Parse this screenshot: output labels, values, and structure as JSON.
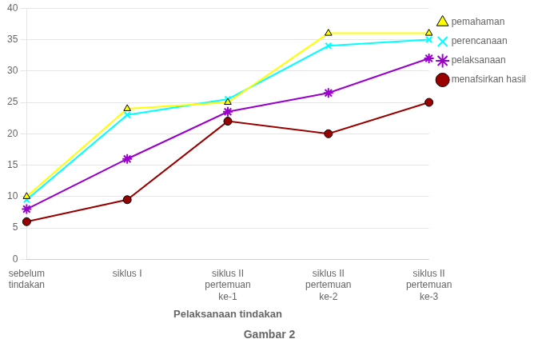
{
  "chart_data": {
    "type": "line",
    "categories": [
      "sebelum\ntindakan",
      "siklus I",
      "siklus II\npertemuan\nke-1",
      "siklus II\npertemuan\nke-2",
      "siklus II\npertemuan\nke-3"
    ],
    "series": [
      {
        "name": "pemahaman",
        "values": [
          10,
          24,
          25,
          36,
          36
        ],
        "color": "#FFFF00",
        "marker": "triangle"
      },
      {
        "name": "perencanaan",
        "values": [
          9.5,
          23,
          25.5,
          34,
          35
        ],
        "color": "#00FFFF",
        "marker": "x"
      },
      {
        "name": "pelaksanaan",
        "values": [
          8,
          16,
          23.5,
          26.5,
          32
        ],
        "color": "#9900CC",
        "marker": "star"
      },
      {
        "name": "menafsirkan hasil",
        "values": [
          6,
          9.5,
          22,
          20,
          25
        ],
        "color": "#990000",
        "marker": "circle"
      }
    ],
    "x_label": "Pelaksanaan tindakan",
    "caption": "Gambar 2",
    "ylim": [
      0,
      40
    ],
    "yticks": [
      0,
      5,
      10,
      15,
      20,
      25,
      30,
      35,
      40
    ],
    "grid": true,
    "legend": "right"
  }
}
